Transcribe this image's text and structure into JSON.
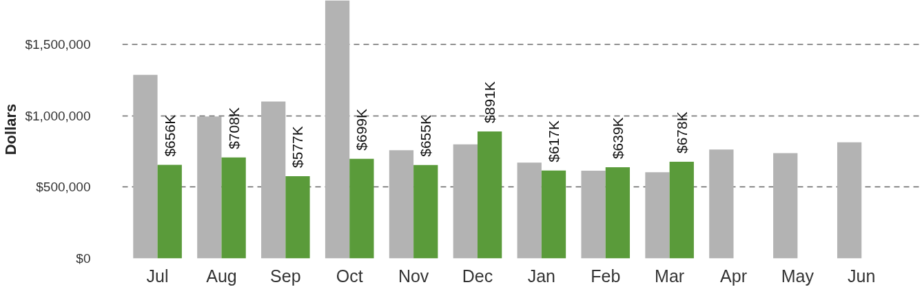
{
  "chart_data": {
    "type": "bar",
    "ylabel": "Dollars",
    "categories": [
      "Jul",
      "Aug",
      "Sep",
      "Oct",
      "Nov",
      "Dec",
      "Jan",
      "Feb",
      "Mar",
      "Apr",
      "May",
      "Jun"
    ],
    "series": [
      {
        "color": "#b3b3b3",
        "values": [
          1287000,
          995000,
          1100000,
          1810000,
          759000,
          800000,
          672000,
          615000,
          605000,
          764000,
          738000,
          815000
        ]
      },
      {
        "color": "#5a9b3a",
        "values": [
          656000,
          708000,
          577000,
          699000,
          655000,
          891000,
          617000,
          639000,
          678000,
          null,
          null,
          null
        ],
        "value_labels": [
          "$656K",
          "$708K",
          "$577K",
          "$699K",
          "$655K",
          "$891K",
          "$617K",
          "$639K",
          "$678K",
          null,
          null,
          null
        ]
      }
    ],
    "yticks": [
      {
        "value": 0,
        "label": "$0"
      },
      {
        "value": 500000,
        "label": "$500,000"
      },
      {
        "value": 1000000,
        "label": "$1,000,000"
      },
      {
        "value": 1500000,
        "label": "$1,500,000"
      }
    ],
    "ylim": [
      0,
      1810000
    ],
    "grid": "y"
  }
}
